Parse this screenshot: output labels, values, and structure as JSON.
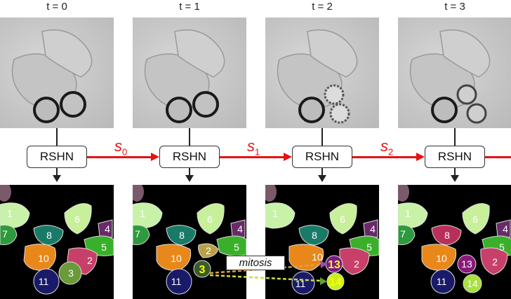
{
  "frames": [
    {
      "time_label": "t = 0"
    },
    {
      "time_label": "t = 1"
    },
    {
      "time_label": "t = 2"
    },
    {
      "time_label": "t = 3"
    }
  ],
  "module_label": "RSHN",
  "state_labels": [
    {
      "symbol": "s",
      "index": "0"
    },
    {
      "symbol": "s",
      "index": "1"
    },
    {
      "symbol": "s",
      "index": "2"
    }
  ],
  "annotation": "mitosis",
  "colors": {
    "arrow": "#e81010",
    "mitosis_arrow": "#e0a040",
    "highlight": "#ffff00"
  },
  "cell_labels": {
    "frame0": [
      "1",
      "7",
      "8",
      "6",
      "4",
      "5",
      "10",
      "2",
      "3",
      "11"
    ],
    "frame1": [
      "1",
      "7",
      "8",
      "6",
      "4",
      "5",
      "10",
      "2",
      "3",
      "11"
    ],
    "frame2": [
      "1",
      "8",
      "6",
      "4",
      "5",
      "10",
      "2",
      "13",
      "14",
      "11"
    ],
    "frame3": [
      "1",
      "7",
      "8",
      "6",
      "4",
      "5",
      "10",
      "2",
      "13",
      "11",
      "14"
    ]
  }
}
